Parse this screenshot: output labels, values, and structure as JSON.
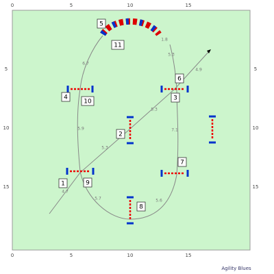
{
  "axes": {
    "top": [
      0,
      5,
      10,
      15
    ],
    "bottom": [
      0,
      5,
      10,
      15
    ],
    "left": [
      5,
      10,
      15
    ],
    "right": [
      5,
      10,
      15
    ]
  },
  "obstacles": [
    "1",
    "2",
    "3",
    "4",
    "5",
    "6",
    "7",
    "8",
    "9",
    "10",
    "11"
  ],
  "distances": [
    "4.7",
    "5.7",
    "5.6",
    "7.1",
    "5.3",
    "5.3",
    "5.9",
    "6.7",
    "5.3",
    "1.8",
    "4.9"
  ],
  "footer": "Agility Blues"
}
